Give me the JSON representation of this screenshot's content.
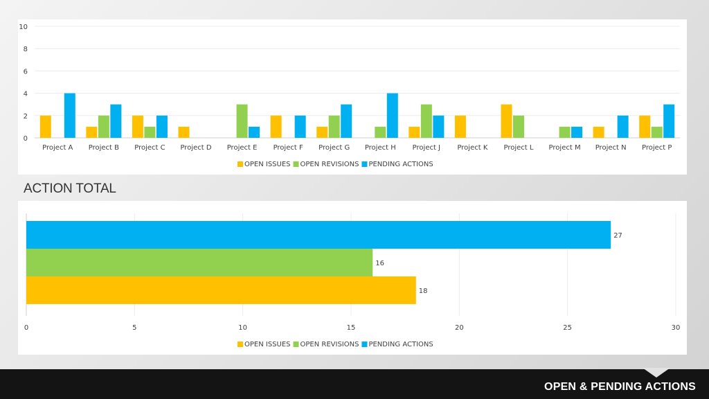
{
  "colors": {
    "open_issues": "#FFC000",
    "open_revisions": "#92D050",
    "pending_actions": "#00B0F0"
  },
  "footer": {
    "title": "OPEN & PENDING ACTIONS"
  },
  "section_title": "ACTION TOTAL",
  "chart_data": [
    {
      "type": "bar",
      "orientation": "vertical",
      "categories": [
        "Project A",
        "Project B",
        "Project C",
        "Project D",
        "Project E",
        "Project F",
        "Project G",
        "Project H",
        "Project J",
        "Project K",
        "Project L",
        "Project M",
        "Project N",
        "Project P"
      ],
      "series": [
        {
          "name": "OPEN ISSUES",
          "values": [
            2,
            1,
            2,
            1,
            0,
            2,
            1,
            0,
            1,
            2,
            3,
            0,
            1,
            2
          ]
        },
        {
          "name": "OPEN REVISIONS",
          "values": [
            0,
            2,
            1,
            0,
            3,
            0,
            2,
            1,
            3,
            0,
            2,
            1,
            0,
            1
          ]
        },
        {
          "name": "PENDING ACTIONS",
          "values": [
            4,
            3,
            2,
            0,
            1,
            2,
            3,
            4,
            2,
            0,
            0,
            1,
            2,
            3
          ]
        }
      ],
      "ylim": [
        0,
        10
      ],
      "yticks": [
        0,
        2,
        4,
        6,
        8,
        10
      ],
      "grid": true,
      "legend": "bottom"
    },
    {
      "type": "bar",
      "orientation": "horizontal",
      "series": [
        {
          "name": "OPEN ISSUES",
          "values": [
            18
          ]
        },
        {
          "name": "OPEN REVISIONS",
          "values": [
            16
          ]
        },
        {
          "name": "PENDING ACTIONS",
          "values": [
            27
          ]
        }
      ],
      "data_labels": [
        "18",
        "16",
        "27"
      ],
      "xlim": [
        0,
        30
      ],
      "xticks": [
        0,
        5,
        10,
        15,
        20,
        25,
        30
      ],
      "grid": true,
      "legend": "bottom"
    }
  ]
}
